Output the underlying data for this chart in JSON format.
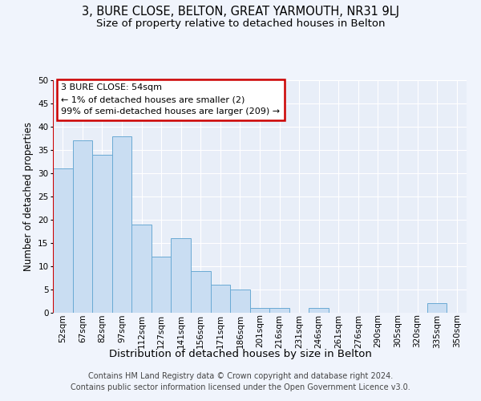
{
  "title1": "3, BURE CLOSE, BELTON, GREAT YARMOUTH, NR31 9LJ",
  "title2": "Size of property relative to detached houses in Belton",
  "xlabel": "Distribution of detached houses by size in Belton",
  "ylabel": "Number of detached properties",
  "bar_labels": [
    "52sqm",
    "67sqm",
    "82sqm",
    "97sqm",
    "112sqm",
    "127sqm",
    "141sqm",
    "156sqm",
    "171sqm",
    "186sqm",
    "201sqm",
    "216sqm",
    "231sqm",
    "246sqm",
    "261sqm",
    "276sqm",
    "290sqm",
    "305sqm",
    "320sqm",
    "335sqm",
    "350sqm"
  ],
  "bar_values": [
    31,
    37,
    34,
    38,
    19,
    12,
    16,
    9,
    6,
    5,
    1,
    1,
    0,
    1,
    0,
    0,
    0,
    0,
    0,
    2,
    0
  ],
  "bar_color": "#c9ddf2",
  "bar_edge_color": "#6aaad4",
  "annotation_text": "3 BURE CLOSE: 54sqm\n← 1% of detached houses are smaller (2)\n99% of semi-detached houses are larger (209) →",
  "annotation_box_color": "#ffffff",
  "annotation_box_edge_color": "#cc0000",
  "ylim": [
    0,
    50
  ],
  "yticks": [
    0,
    5,
    10,
    15,
    20,
    25,
    30,
    35,
    40,
    45,
    50
  ],
  "footer1": "Contains HM Land Registry data © Crown copyright and database right 2024.",
  "footer2": "Contains public sector information licensed under the Open Government Licence v3.0.",
  "bg_color": "#f0f4fc",
  "plot_bg_color": "#e8eef8",
  "grid_color": "#ffffff",
  "title1_fontsize": 10.5,
  "title2_fontsize": 9.5,
  "xlabel_fontsize": 9.5,
  "ylabel_fontsize": 8.5,
  "tick_fontsize": 7.5,
  "annotation_fontsize": 8,
  "footer_fontsize": 7
}
